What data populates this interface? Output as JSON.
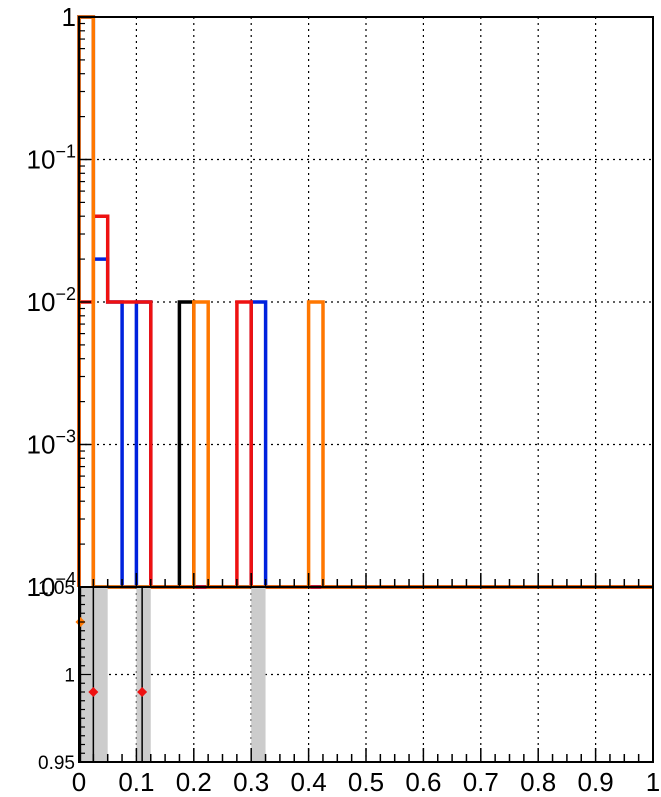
{
  "chart_data": [
    {
      "type": "line",
      "panel": "top",
      "title": "",
      "xlabel": "",
      "ylabel": "",
      "xlim": [
        0,
        1
      ],
      "ylim": [
        0.0001,
        1
      ],
      "yscale": "log",
      "grid": true,
      "xtick_labels": [],
      "ytick_values": [
        0.0001,
        0.001,
        0.01,
        0.1,
        1
      ],
      "ytick_labels": [
        {
          "base": "10",
          "exp": "−4"
        },
        {
          "base": "10",
          "exp": "−3"
        },
        {
          "base": "10",
          "exp": "−2"
        },
        {
          "base": "10",
          "exp": "−1"
        },
        {
          "base": "1",
          "exp": ""
        }
      ],
      "bin_width": 0.025,
      "series": [
        {
          "color": "#000000",
          "bins": [
            {
              "x": 0.0,
              "y": 1
            },
            {
              "x": 0.175,
              "y": 0.01
            }
          ]
        },
        {
          "color": "#0022dd",
          "bins": [
            {
              "x": 0.0,
              "y": 1
            },
            {
              "x": 0.025,
              "y": 0.02
            },
            {
              "x": 0.05,
              "y": 0.01
            },
            {
              "x": 0.1,
              "y": 0.01
            },
            {
              "x": 0.3,
              "y": 0.01
            }
          ]
        },
        {
          "color": "#ee1111",
          "bins": [
            {
              "x": 0.0,
              "y": 0.01
            },
            {
              "x": 0.025,
              "y": 0.04
            },
            {
              "x": 0.05,
              "y": 0.01
            },
            {
              "x": 0.075,
              "y": 0.01
            },
            {
              "x": 0.1,
              "y": 0.01
            },
            {
              "x": 0.275,
              "y": 0.01
            }
          ]
        },
        {
          "color": "#ff7700",
          "bins": [
            {
              "x": 0.0,
              "y": 1
            },
            {
              "x": 0.2,
              "y": 0.01
            },
            {
              "x": 0.4,
              "y": 0.01
            }
          ]
        }
      ]
    },
    {
      "type": "scatter",
      "panel": "bottom",
      "title": "",
      "xlabel": "",
      "ylabel": "",
      "xlim": [
        0,
        1
      ],
      "ylim": [
        0.95,
        1.05
      ],
      "grid": true,
      "xtick_values": [
        0,
        0.1,
        0.2,
        0.3,
        0.4,
        0.5,
        0.6,
        0.7,
        0.8,
        0.9,
        1
      ],
      "xtick_labels": [
        "0",
        "0.1",
        "0.2",
        "0.3",
        "0.4",
        "0.5",
        "0.6",
        "0.7",
        "0.8",
        "0.9",
        "1"
      ],
      "ytick_values": [
        0.95,
        1,
        1.05
      ],
      "ytick_labels": [
        "0.95",
        "1",
        "1.05"
      ],
      "reference_line": 1.0,
      "bands": [
        {
          "x0": 0.0,
          "x1": 0.05,
          "color": "#cccccc"
        },
        {
          "x0": 0.1,
          "x1": 0.125,
          "color": "#cccccc"
        },
        {
          "x0": 0.3,
          "x1": 0.325,
          "color": "#cccccc"
        }
      ],
      "points": [
        {
          "x": 0.0025,
          "y": 1.03,
          "color": "#ff7700",
          "err_low": 0.95,
          "err_high": 1.05
        },
        {
          "x": 0.025,
          "y": 0.99,
          "color": "#ee1111",
          "err_low": 0.95,
          "err_high": 1.05
        },
        {
          "x": 0.11,
          "y": 0.99,
          "color": "#ee1111",
          "err_low": 0.95,
          "err_high": 1.05
        }
      ]
    }
  ]
}
